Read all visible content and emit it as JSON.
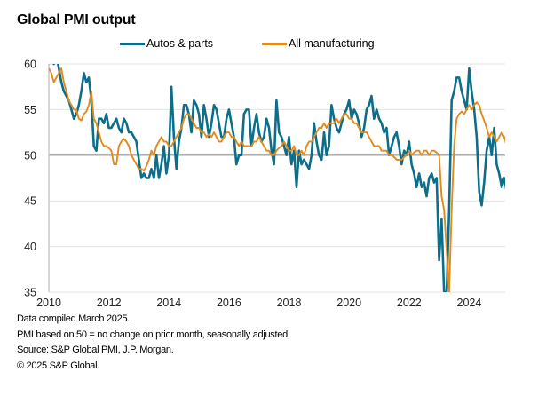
{
  "chart_data": {
    "type": "line",
    "title": "Global PMI output",
    "xlabel": "",
    "ylabel": "",
    "x_start": "2010-01",
    "x_end": "2025-02",
    "frequency": "monthly",
    "xlim": [
      2010.0,
      2025.2
    ],
    "ylim": [
      35,
      60
    ],
    "x_ticks": [
      "2010",
      "2012",
      "2014",
      "2016",
      "2018",
      "2020",
      "2022",
      "2024"
    ],
    "x_tick_values": [
      2010,
      2012,
      2014,
      2016,
      2018,
      2020,
      2022,
      2024
    ],
    "y_ticks": [
      "35",
      "40",
      "45",
      "50",
      "55",
      "60"
    ],
    "y_tick_values": [
      35,
      40,
      45,
      50,
      55,
      60
    ],
    "grid": "horizontal",
    "reference_line": 50,
    "legend_position": "top",
    "series": [
      {
        "name": "Autos & parts",
        "color": "#0d6e8a",
        "values": [
          60.0,
          61.0,
          60.0,
          61.0,
          59.5,
          58.0,
          57.0,
          56.5,
          56.0,
          55.0,
          54.0,
          54.5,
          55.5,
          57.0,
          59.0,
          58.0,
          58.5,
          56.0,
          51.0,
          50.5,
          54.0,
          54.0,
          53.5,
          54.5,
          53.0,
          53.0,
          53.5,
          54.0,
          53.0,
          52.5,
          54.0,
          53.5,
          52.5,
          52.5,
          52.0,
          51.5,
          49.5,
          47.5,
          48.0,
          47.5,
          47.5,
          48.5,
          47.5,
          50.0,
          47.5,
          49.0,
          51.0,
          48.0,
          50.0,
          57.5,
          52.0,
          48.5,
          51.5,
          53.0,
          55.5,
          55.5,
          54.5,
          52.5,
          56.0,
          55.5,
          54.5,
          52.0,
          55.5,
          54.0,
          52.0,
          53.5,
          55.5,
          55.0,
          53.5,
          52.0,
          52.0,
          54.0,
          55.0,
          53.5,
          52.0,
          49.0,
          50.0,
          50.0,
          54.5,
          55.0,
          55.0,
          51.0,
          53.0,
          54.5,
          52.5,
          51.5,
          52.0,
          54.0,
          53.0,
          50.5,
          49.0,
          56.0,
          52.5,
          52.0,
          51.0,
          50.0,
          52.0,
          49.0,
          50.5,
          46.5,
          50.5,
          49.0,
          49.5,
          49.0,
          48.5,
          50.0,
          53.5,
          51.5,
          50.0,
          49.5,
          52.5,
          50.0,
          51.0,
          55.5,
          54.0,
          53.0,
          52.5,
          53.5,
          54.5,
          55.0,
          56.0,
          54.0,
          55.0,
          54.5,
          53.5,
          52.0,
          53.0,
          55.0,
          55.5,
          56.5,
          54.0,
          55.0,
          54.0,
          53.5,
          52.5,
          53.0,
          50.0,
          51.0,
          52.0,
          52.5,
          51.0,
          49.0,
          50.5,
          50.0,
          51.5,
          49.0,
          48.0,
          46.5,
          48.0,
          46.5,
          47.0,
          45.5,
          47.5,
          48.0,
          47.0,
          47.5,
          38.5,
          43.0,
          33.5,
          35.0,
          44.0,
          56.0,
          57.0,
          58.5,
          58.5,
          57.0,
          56.0,
          55.0,
          59.5,
          57.0,
          55.0,
          52.0,
          46.0,
          44.5,
          47.0,
          50.5,
          52.0,
          50.0,
          53.0,
          49.0,
          48.0,
          46.5,
          47.5,
          46.0,
          52.5,
          50.0,
          49.5,
          48.0,
          44.0,
          43.0,
          45.5,
          48.0,
          48.5,
          52.5,
          52.0,
          50.5,
          52.0,
          48.0,
          51.5,
          52.0,
          50.5,
          49.0,
          50.5,
          48.5,
          51.5,
          53.0,
          56.0,
          51.0,
          49.0,
          47.0,
          46.5,
          44.5,
          46.0,
          48.5,
          50.5,
          48.0,
          47.5,
          48.5
        ]
      },
      {
        "name": "All manufacturing",
        "color": "#e28a1b",
        "values": [
          59.5,
          59.0,
          58.0,
          58.5,
          59.0,
          59.5,
          58.0,
          57.0,
          56.0,
          55.5,
          55.0,
          55.0,
          54.0,
          53.8,
          54.5,
          54.8,
          55.5,
          57.0,
          54.0,
          53.5,
          52.5,
          51.5,
          51.0,
          51.0,
          50.8,
          50.5,
          49.0,
          49.0,
          51.0,
          51.5,
          51.8,
          51.5,
          51.0,
          50.0,
          49.5,
          49.0,
          48.5,
          48.5,
          48.3,
          48.8,
          49.5,
          50.5,
          50.0,
          51.0,
          51.5,
          52.0,
          51.5,
          51.5,
          51.0,
          51.0,
          51.5,
          52.0,
          52.5,
          53.0,
          54.0,
          54.5,
          54.5,
          54.0,
          53.5,
          53.0,
          53.0,
          52.5,
          52.5,
          52.0,
          52.3,
          52.0,
          52.5,
          52.0,
          51.5,
          51.5,
          52.0,
          52.5,
          52.5,
          52.0,
          52.0,
          51.5,
          51.0,
          51.5,
          51.0,
          51.0,
          51.0,
          51.0,
          51.5,
          51.5,
          52.0,
          51.5,
          51.0,
          50.5,
          50.5,
          50.0,
          50.0,
          50.5,
          50.8,
          51.0,
          51.5,
          51.0,
          50.5,
          50.5,
          51.0,
          50.0,
          50.0,
          50.5,
          50.0,
          51.0,
          51.5,
          51.5,
          52.0,
          52.5,
          53.0,
          53.0,
          53.5,
          53.0,
          53.5,
          53.5,
          53.5,
          54.0,
          53.5,
          54.0,
          54.5,
          54.5,
          54.0,
          54.0,
          53.5,
          53.5,
          53.0,
          52.5,
          52.5,
          52.5,
          52.0,
          51.5,
          51.0,
          51.0,
          51.0,
          50.5,
          50.5,
          50.5,
          50.0,
          50.0,
          49.8,
          49.5,
          49.5,
          49.5,
          49.8,
          50.0,
          50.5,
          50.0,
          50.3,
          50.5,
          50.5,
          50.0,
          50.5,
          50.5,
          50.0,
          50.5,
          50.5,
          50.3,
          50.0,
          45.5,
          44.0,
          39.5,
          34.0,
          44.0,
          51.0,
          54.0,
          54.5,
          54.8,
          54.5,
          55.0,
          55.5,
          55.0,
          55.5,
          55.8,
          55.5,
          54.5,
          53.8,
          53.0,
          52.0,
          52.5,
          52.0,
          51.5,
          52.0,
          52.5,
          52.0,
          51.0,
          51.5,
          51.0,
          50.5,
          49.5,
          48.5,
          48.5,
          48.3,
          49.0,
          49.5,
          51.5,
          52.0,
          52.5,
          52.0,
          51.0,
          50.0,
          49.5,
          49.0,
          48.5,
          49.0,
          49.5,
          50.5,
          51.0,
          52.0,
          52.5,
          51.0,
          50.5,
          49.5,
          50.0,
          50.0,
          50.0,
          49.5,
          50.0,
          50.5,
          51.5
        ]
      }
    ]
  },
  "header": {
    "title": "Global PMI output"
  },
  "legend": {
    "items": [
      "Autos & parts",
      "All manufacturing"
    ]
  },
  "footnotes": [
    "Data compiled March 2025.",
    "PMI based on 50 = no change on prior month, seasonally adjusted.",
    "Source: S&P Global PMI, J.P. Morgan.",
    "© 2025 S&P Global."
  ]
}
